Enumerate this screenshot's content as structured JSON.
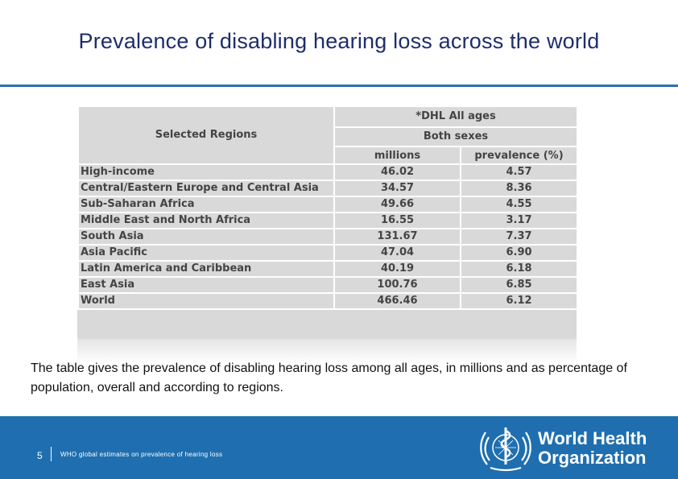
{
  "slide": {
    "title": "Prevalence of disabling hearing loss across the world",
    "caption": "The table gives the prevalence of disabling hearing loss among all ages, in millions and as percentage of population, overall and according to regions."
  },
  "table": {
    "region_header": "Selected Regions",
    "group_header": "*DHL All ages",
    "sub_header": "Both sexes",
    "col_millions": "millions",
    "col_prevalence": "prevalence (%)",
    "rows": [
      {
        "region": "High-income",
        "millions": "46.02",
        "prevalence": "4.57"
      },
      {
        "region": "Central/Eastern Europe and Central Asia",
        "millions": "34.57",
        "prevalence": "8.36"
      },
      {
        "region": "Sub-Saharan Africa",
        "millions": "49.66",
        "prevalence": "4.55"
      },
      {
        "region": "Middle East and North Africa",
        "millions": "16.55",
        "prevalence": "3.17"
      },
      {
        "region": "South Asia",
        "millions": "131.67",
        "prevalence": "7.37"
      },
      {
        "region": "Asia Pacific",
        "millions": "47.04",
        "prevalence": "6.90"
      },
      {
        "region": "Latin America and Caribbean",
        "millions": "40.19",
        "prevalence": "6.18"
      },
      {
        "region": "East Asia",
        "millions": "100.76",
        "prevalence": "6.85"
      },
      {
        "region": "World",
        "millions": "466.46",
        "prevalence": "6.12"
      }
    ]
  },
  "footer": {
    "page_number": "5",
    "text": "WHO global estimates on prevalence of hearing loss",
    "org_line1": "World Health",
    "org_line2": "Organization",
    "icon": "who-emblem-icon"
  },
  "colors": {
    "title": "#1f2d6b",
    "rule": "#2f6fb3",
    "footer": "#1f6fb0",
    "table_cell": "#d9d9d9"
  }
}
